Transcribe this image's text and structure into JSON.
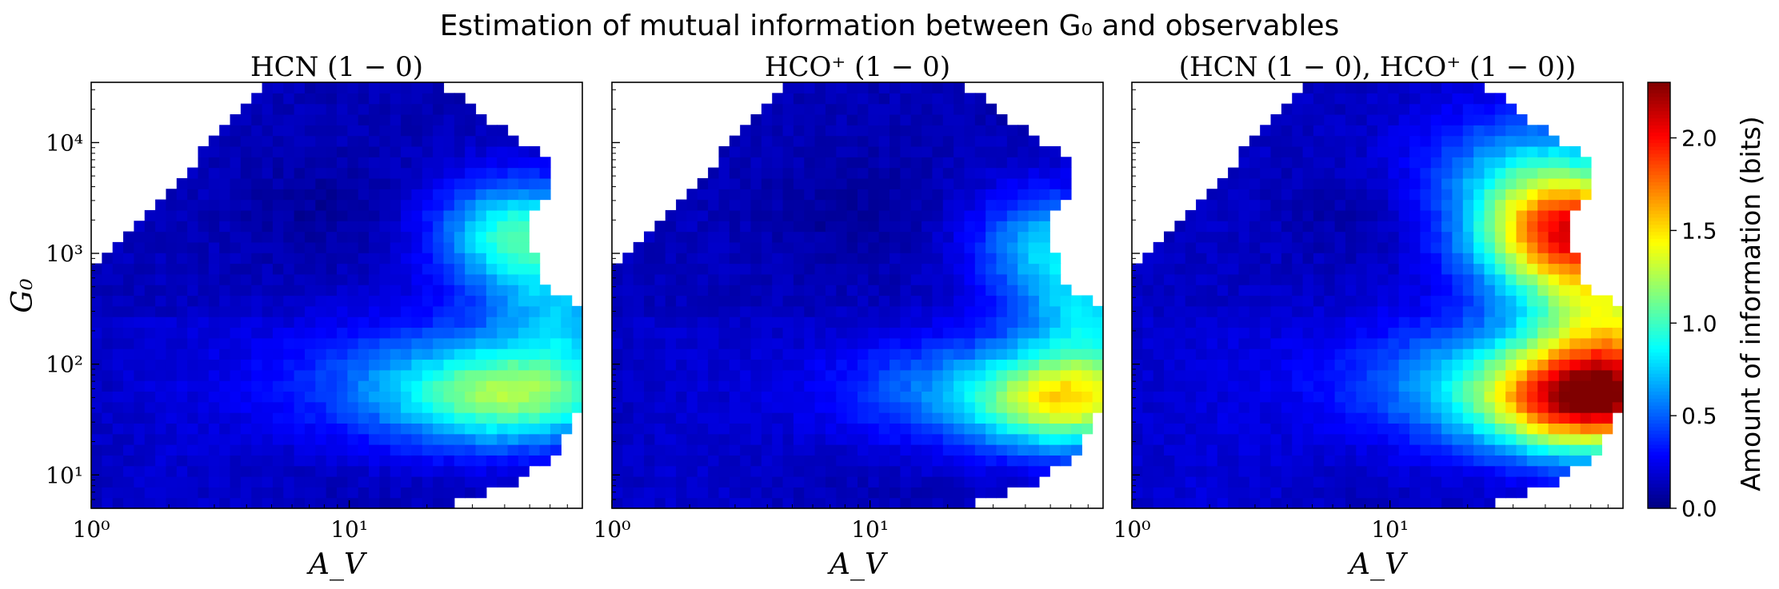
{
  "figure": {
    "title": "Estimation of mutual information between G₀ and observables"
  },
  "chart_data": {
    "type": "heatmap",
    "x_scale": "log",
    "y_scale": "log",
    "xlim": [
      1,
      80
    ],
    "ylim": [
      5,
      35000
    ],
    "xlabel": "A_V",
    "ylabel": "G₀",
    "x_ticks": [
      {
        "value": 1,
        "label": "10⁰"
      },
      {
        "value": 10,
        "label": "10¹"
      }
    ],
    "y_ticks": [
      {
        "value": 10,
        "label": "10¹"
      },
      {
        "value": 100,
        "label": "10²"
      },
      {
        "value": 1000,
        "label": "10³"
      },
      {
        "value": 10000,
        "label": "10⁴"
      }
    ],
    "colormap": "jet",
    "colorbar": {
      "label": "Amount of information (bits)",
      "range": [
        0,
        2.3
      ],
      "ticks": [
        {
          "value": 0.0,
          "label": "0.0"
        },
        {
          "value": 0.5,
          "label": "0.5"
        },
        {
          "value": 1.0,
          "label": "1.0"
        },
        {
          "value": 1.5,
          "label": "1.5"
        },
        {
          "value": 2.0,
          "label": "2.0"
        }
      ]
    },
    "panels": [
      {
        "title": "HCN (1 − 0)",
        "base_info": 0.12,
        "hotspots": [
          {
            "av": 45,
            "g0": 1500,
            "peak": 0.85,
            "sx": 0.22,
            "sy": 0.35
          },
          {
            "av": 45,
            "g0": 50,
            "peak": 0.75,
            "sx": 0.3,
            "sy": 0.3
          },
          {
            "av": 22,
            "g0": 70,
            "peak": 0.45,
            "sx": 0.45,
            "sy": 0.4
          },
          {
            "av": 70,
            "g0": 300,
            "peak": 0.45,
            "sx": 0.2,
            "sy": 0.4
          }
        ]
      },
      {
        "title": "HCO⁺ (1 − 0)",
        "base_info": 0.12,
        "hotspots": [
          {
            "av": 60,
            "g0": 45,
            "peak": 1.05,
            "sx": 0.25,
            "sy": 0.3
          },
          {
            "av": 50,
            "g0": 1200,
            "peak": 0.6,
            "sx": 0.2,
            "sy": 0.35
          },
          {
            "av": 25,
            "g0": 60,
            "peak": 0.45,
            "sx": 0.4,
            "sy": 0.35
          },
          {
            "av": 75,
            "g0": 250,
            "peak": 0.55,
            "sx": 0.2,
            "sy": 0.4
          }
        ]
      },
      {
        "title": "(HCN (1 − 0), HCO⁺ (1 − 0))",
        "base_info": 0.14,
        "hotspots": [
          {
            "av": 50,
            "g0": 1500,
            "peak": 1.75,
            "sx": 0.25,
            "sy": 0.38
          },
          {
            "av": 60,
            "g0": 45,
            "peak": 1.55,
            "sx": 0.28,
            "sy": 0.32
          },
          {
            "av": 75,
            "g0": 200,
            "peak": 0.9,
            "sx": 0.22,
            "sy": 0.45
          },
          {
            "av": 30,
            "g0": 70,
            "peak": 0.6,
            "sx": 0.45,
            "sy": 0.4
          },
          {
            "av": 35,
            "g0": 6000,
            "peak": 0.45,
            "sx": 0.3,
            "sy": 0.4
          }
        ]
      }
    ]
  }
}
